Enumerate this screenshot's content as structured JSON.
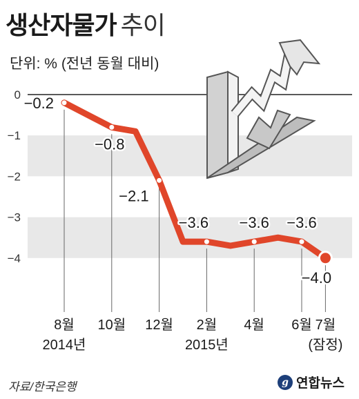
{
  "title": "생산자물가",
  "title_sub": "추이",
  "unit_label": "단위: % (전년 동월 대비)",
  "source": "자료/한국은행",
  "brand": "연합뉴스",
  "brand_mark": "g",
  "colors": {
    "line": "#e0462a",
    "band": "#e8e8e8",
    "axis": "#222222",
    "label": "#1a1a1a"
  },
  "chart_data": {
    "type": "line",
    "ylim": [
      -4.5,
      0.3
    ],
    "yticks": [
      0,
      -1,
      -2,
      -3,
      -4
    ],
    "ytick_labels": [
      "0",
      "−1",
      "−2",
      "−3",
      "−4"
    ],
    "shaded_bands": [
      [
        -2,
        -1
      ],
      [
        -4,
        -3
      ]
    ],
    "points": [
      {
        "month": "2014-08",
        "y": -0.2,
        "label": "−0.2",
        "marker": true
      },
      {
        "month": "2014-09",
        "y": -0.5,
        "marker": false
      },
      {
        "month": "2014-10",
        "y": -0.8,
        "label": "−0.8",
        "marker": true
      },
      {
        "month": "2014-11",
        "y": -0.9,
        "marker": false
      },
      {
        "month": "2014-12",
        "y": -2.1,
        "label": "−2.1",
        "marker": true
      },
      {
        "month": "2015-01",
        "y": -3.6,
        "marker": false
      },
      {
        "month": "2015-02",
        "y": -3.6,
        "label": "−3.6",
        "marker": true
      },
      {
        "month": "2015-03",
        "y": -3.7,
        "marker": false
      },
      {
        "month": "2015-04",
        "y": -3.6,
        "label": "−3.6",
        "marker": true
      },
      {
        "month": "2015-05",
        "y": -3.5,
        "marker": false
      },
      {
        "month": "2015-06",
        "y": -3.6,
        "label": "−3.6",
        "marker": true
      },
      {
        "month": "2015-07",
        "y": -4.0,
        "label": "−4.0",
        "marker": true,
        "emphasis": true
      }
    ],
    "x_ticks": [
      {
        "month": "2014-08",
        "lines": [
          "8월",
          "2014년"
        ]
      },
      {
        "month": "2014-10",
        "lines": [
          "10월"
        ]
      },
      {
        "month": "2014-12",
        "lines": [
          "12월"
        ]
      },
      {
        "month": "2015-02",
        "lines": [
          "2월",
          "2015년"
        ]
      },
      {
        "month": "2015-04",
        "lines": [
          "4월"
        ]
      },
      {
        "month": "2015-06",
        "lines": [
          "6월"
        ]
      },
      {
        "month": "2015-07",
        "lines": [
          "7월",
          "(잠정)"
        ]
      }
    ]
  }
}
